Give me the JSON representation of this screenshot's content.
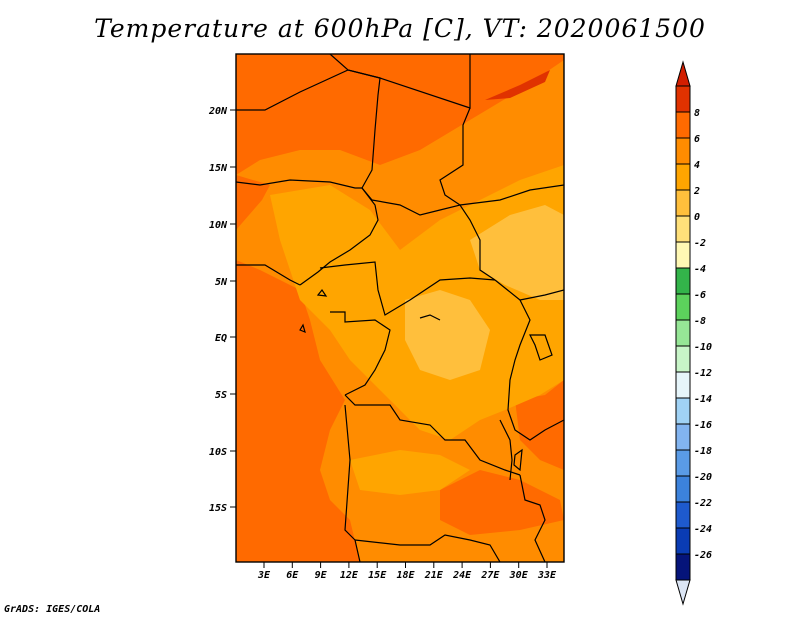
{
  "title": "Temperature at 600hPa [C], VT: 2020061500",
  "credit": "GrADS: IGES/COLA",
  "map": {
    "lat_ticks": [
      "20N",
      "15N",
      "10N",
      "5N",
      "EQ",
      "5S",
      "10S",
      "15S"
    ],
    "lon_ticks": [
      "3E",
      "6E",
      "9E",
      "12E",
      "15E",
      "18E",
      "21E",
      "24E",
      "27E",
      "30E",
      "33E"
    ]
  },
  "colorbar": {
    "labels": [
      "8",
      "6",
      "4",
      "2",
      "0",
      "-2",
      "-4",
      "-6",
      "-8",
      "-10",
      "-12",
      "-14",
      "-16",
      "-18",
      "-20",
      "-22",
      "-24",
      "-26"
    ],
    "colors": [
      "#e03200",
      "#ff6a00",
      "#ff8c00",
      "#ffa500",
      "#ffbf3c",
      "#ffe07a",
      "#fff8b4",
      "#33b44a",
      "#5cd25c",
      "#96e696",
      "#c8f5c8",
      "#e6f5fa",
      "#a0d2f5",
      "#82b4f0",
      "#5a9be6",
      "#3c82dc",
      "#1e5acd",
      "#0a3cb4",
      "#05147a"
    ],
    "top_arrow_color": "#d21e00",
    "bottom_arrow_color": "#dce6f5"
  },
  "fields": {
    "c_above_4": "#ff6a00",
    "c_2_to_4": "#ff8c00",
    "c_0_to_2": "#ffa500",
    "c_below_0": "#ffbf3c",
    "c_6_to_8": "#e03200"
  }
}
